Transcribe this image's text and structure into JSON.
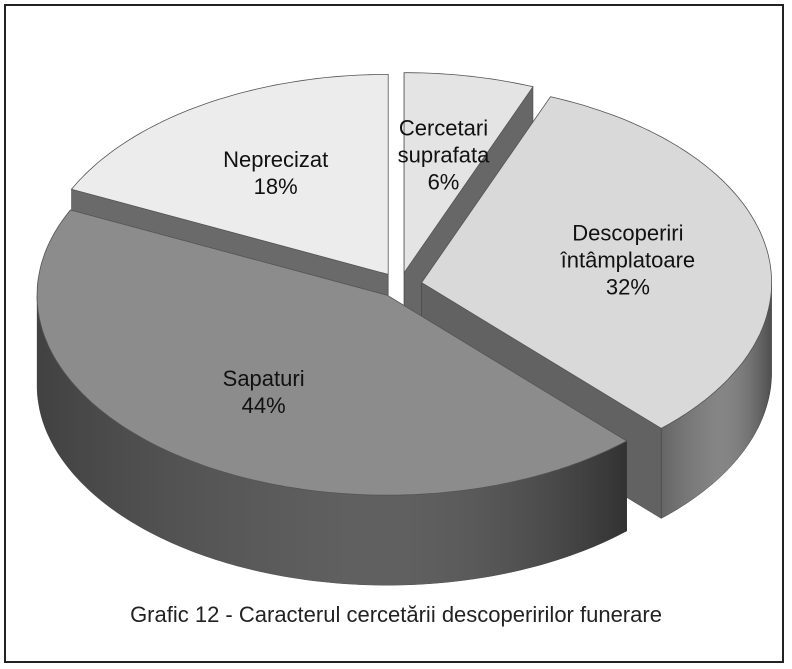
{
  "chart_data": {
    "type": "pie",
    "title": "Grafic 12 - Caracterul cercetării descoperirilor funerare",
    "categories": [
      "Cercetari suprafata",
      "Descoperiri întâmplatoare",
      "Sapaturi",
      "Neprecizat"
    ],
    "values": [
      6,
      32,
      44,
      18
    ],
    "value_labels": [
      "6%",
      "32%",
      "44%",
      "18%"
    ],
    "colors": [
      "#e4e4e4",
      "#d9d9d9",
      "#8c8c8c",
      "#ececec"
    ]
  }
}
